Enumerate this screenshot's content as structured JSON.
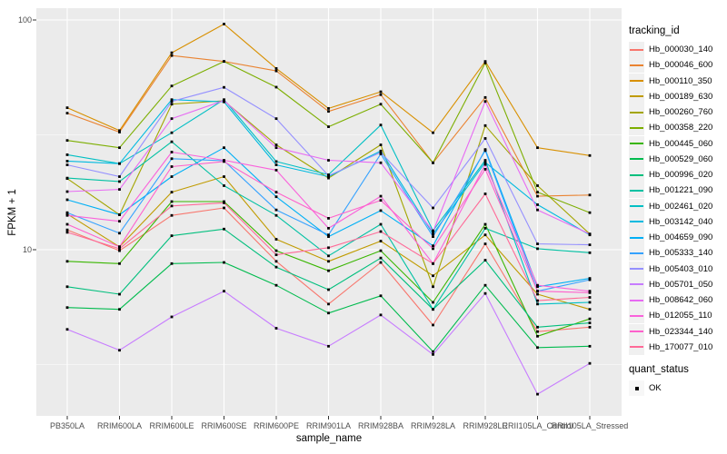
{
  "chart_data": {
    "type": "line",
    "title": "",
    "xlabel": "sample_name",
    "ylabel": "FPKM + 1",
    "y_scale": "log10",
    "y_ticks": [
      10,
      100
    ],
    "y_tick_labels": [
      "10",
      "100"
    ],
    "y_minor_ticks": [
      3.1623,
      31.623
    ],
    "ylim": [
      1.9,
      113
    ],
    "grid": "white-on-gray",
    "panel_bg": "#EBEBEB",
    "gridline_color": "#FFFFFF",
    "tick_mark_color": "#333333",
    "tick_label_color": "#4D4D4D",
    "marker_color": "#000000",
    "marker_shape": "square",
    "legend_position": "right",
    "legend_title": "tracking_id",
    "legend2_title": "quant_status",
    "legend2_items": [
      {
        "label": "OK",
        "marker": "black-square"
      }
    ],
    "categories": [
      "PB350LA",
      "RRIM600LA",
      "RRIM600LE",
      "RRIM600SE",
      "RRIM600PE",
      "RRIM901LA",
      "RRIM928BA",
      "RRIM928LA",
      "RRIM928LE",
      "RRII105LA_Control",
      "RRII105LA_Stressed"
    ],
    "series": [
      {
        "name": "Hb_000030_140",
        "color": "#F8766D",
        "values": [
          12.2,
          9.9,
          14.1,
          15.2,
          8.9,
          5.8,
          8.8,
          4.7,
          10.6,
          4.4,
          4.6
        ]
      },
      {
        "name": "Hb_000046_600",
        "color": "#EA8331",
        "values": [
          39.3,
          32.5,
          70,
          66,
          60,
          40,
          47.3,
          23.9,
          46,
          17.1,
          17.3
        ]
      },
      {
        "name": "Hb_000110_350",
        "color": "#D89000",
        "values": [
          41.5,
          33,
          72,
          96,
          61.5,
          41.2,
          48.7,
          32.3,
          66,
          27.8,
          25.7
        ]
      },
      {
        "name": "Hb_000189_630",
        "color": "#C09B00",
        "values": [
          14.3,
          10.3,
          17.8,
          20.8,
          11.1,
          8.9,
          10.9,
          7.7,
          11.6,
          6.4,
          5.5
        ]
      },
      {
        "name": "Hb_000260_760",
        "color": "#A3A500",
        "values": [
          20.4,
          14.2,
          43,
          44.5,
          28.6,
          20.5,
          28.6,
          6.9,
          34.7,
          19,
          11.7
        ]
      },
      {
        "name": "Hb_000358_220",
        "color": "#7CAE00",
        "values": [
          29.9,
          27.8,
          51.6,
          66,
          51,
          34.3,
          43,
          23.9,
          65,
          17.8,
          14.5
        ]
      },
      {
        "name": "Hb_000445_060",
        "color": "#39B600",
        "values": [
          8.9,
          8.7,
          16.2,
          16.2,
          9.9,
          8.1,
          9.9,
          5.9,
          12.9,
          4.2,
          5.0
        ]
      },
      {
        "name": "Hb_000529_060",
        "color": "#00BB4E",
        "values": [
          5.6,
          5.5,
          8.7,
          8.8,
          7.0,
          5.3,
          6.3,
          3.6,
          7.0,
          3.75,
          3.8
        ]
      },
      {
        "name": "Hb_000996_020",
        "color": "#00BF7D",
        "values": [
          6.9,
          6.4,
          11.5,
          12.3,
          8.4,
          6.7,
          9.2,
          5.5,
          9.0,
          4.6,
          4.8
        ]
      },
      {
        "name": "Hb_001221_090",
        "color": "#00C1A3",
        "values": [
          20.5,
          19.8,
          29.5,
          19.0,
          14.1,
          9.4,
          12.9,
          5.5,
          12.4,
          10.1,
          9.7
        ]
      },
      {
        "name": "Hb_002461_020",
        "color": "#00BFC4",
        "values": [
          25.9,
          23.7,
          32.3,
          45,
          24.2,
          21.2,
          34.9,
          12.1,
          24.5,
          5.8,
          5.9
        ]
      },
      {
        "name": "Hb_003142_040",
        "color": "#00BAE0",
        "values": [
          24.3,
          23.7,
          45,
          44,
          23.4,
          20.8,
          26.9,
          11.7,
          24.0,
          15.7,
          11.6
        ]
      },
      {
        "name": "Hb_004659_090",
        "color": "#00B0F6",
        "values": [
          16.5,
          14.2,
          20.8,
          27.8,
          17.0,
          11.4,
          14.8,
          10.4,
          27.3,
          6.9,
          7.5
        ]
      },
      {
        "name": "Hb_005333_140",
        "color": "#35A2FF",
        "values": [
          14.5,
          11.8,
          24.9,
          24.4,
          14.9,
          11.6,
          26.1,
          11.4,
          27.0,
          6.6,
          7.4
        ]
      },
      {
        "name": "Hb_005403_010",
        "color": "#9590FF",
        "values": [
          23.4,
          20.8,
          44.2,
          50.9,
          37.2,
          21.0,
          26.5,
          15.2,
          30.5,
          10.6,
          10.5
        ]
      },
      {
        "name": "Hb_005701_050",
        "color": "#C77CFF",
        "values": [
          4.5,
          3.65,
          5.1,
          6.6,
          4.55,
          3.8,
          5.2,
          3.5,
          6.45,
          2.35,
          3.2
        ]
      },
      {
        "name": "Hb_008642_060",
        "color": "#E76BF3",
        "values": [
          17.9,
          18.3,
          37.2,
          44.6,
          27.8,
          24.5,
          23.9,
          12.0,
          44.2,
          14.9,
          11.7
        ]
      },
      {
        "name": "Hb_012055_110",
        "color": "#FA62DB",
        "values": [
          14.1,
          13.3,
          26.6,
          24.5,
          22.2,
          12.4,
          17.1,
          8.7,
          23.5,
          7.0,
          6.6
        ]
      },
      {
        "name": "Hb_023344_140",
        "color": "#FF61CC",
        "values": [
          12.9,
          10.3,
          23,
          24.2,
          17.8,
          13.7,
          16.4,
          10.1,
          22.4,
          6.6,
          6.5
        ]
      },
      {
        "name": "Hb_170077_010",
        "color": "#FF6A98",
        "values": [
          11.9,
          10.1,
          15.5,
          16.0,
          9.5,
          10.2,
          12.0,
          8.7,
          17.5,
          6.0,
          6.2
        ]
      }
    ]
  }
}
